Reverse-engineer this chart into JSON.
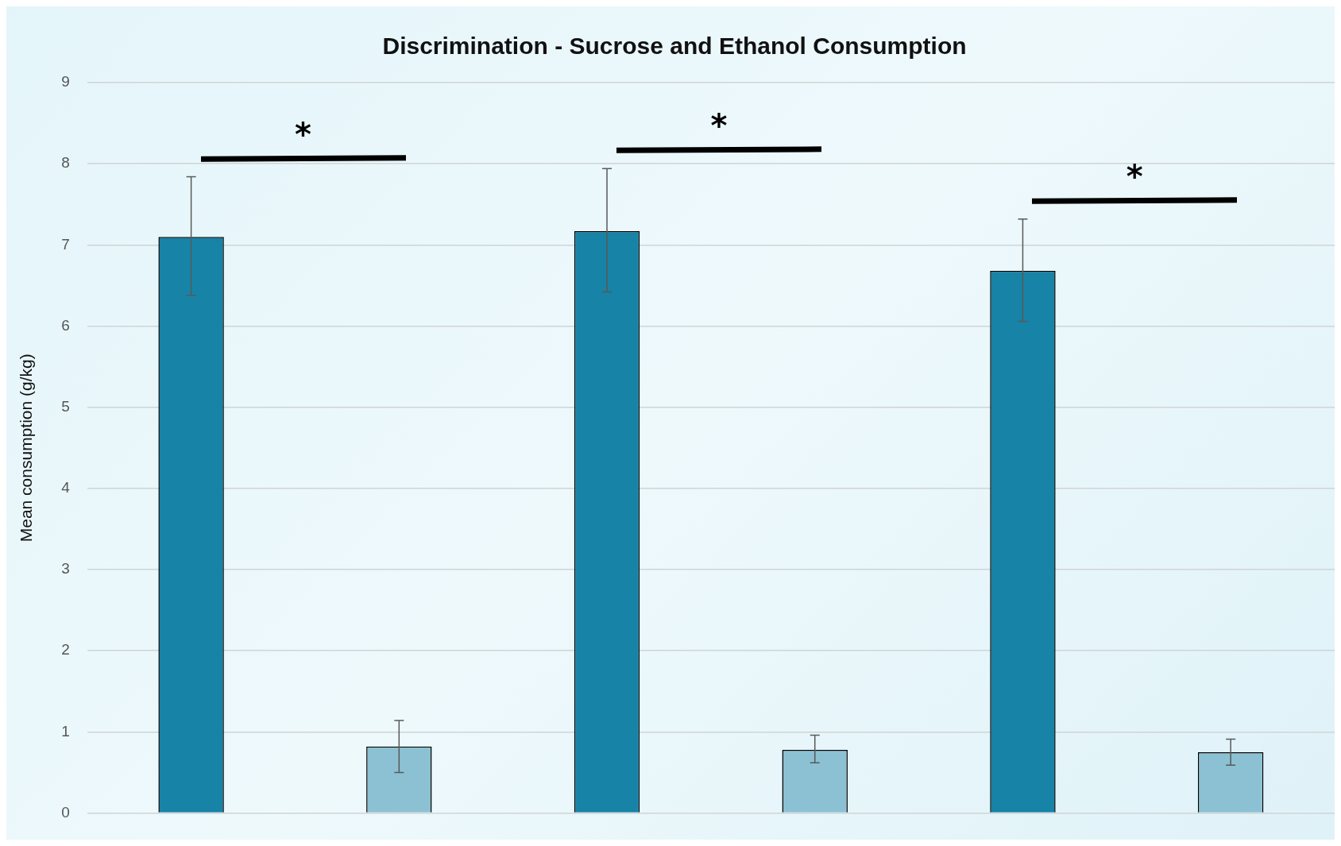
{
  "chart_data": {
    "type": "bar",
    "title": "Discrimination - Sucrose and Ethanol Consumption",
    "ylabel": "Mean consumption (g/kg)",
    "categories": [
      null,
      null,
      null
    ],
    "series": [
      {
        "color": "#1783a6",
        "values": [
          7.1,
          7.17,
          6.68
        ],
        "errors": [
          [
            6.38,
            7.84
          ],
          [
            6.42,
            7.94
          ],
          [
            6.06,
            7.32
          ]
        ]
      },
      {
        "color": "#8bc1d3",
        "values": [
          0.82,
          0.78,
          0.75
        ],
        "errors": [
          [
            0.5,
            1.14
          ],
          [
            0.62,
            0.96
          ],
          [
            0.59,
            0.91
          ]
        ]
      }
    ],
    "ylim": [
      0,
      9
    ],
    "yticks": [
      0,
      1,
      2,
      3,
      4,
      5,
      6,
      7,
      8,
      9
    ],
    "grid": "y",
    "legend": false,
    "tick_labels": "y",
    "annotations": [
      "*",
      "*",
      "*"
    ]
  }
}
